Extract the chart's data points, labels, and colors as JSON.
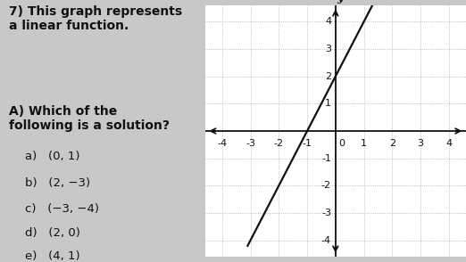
{
  "title_text": "7) This graph represents\na linear function.",
  "question_text": "A) Which of the\nfollowing is a solution?",
  "options": [
    "a)   (0, 1)",
    "b)   (2, −3)",
    "c)   (−3, −4)",
    "d)   (2, 0)",
    "e)   (4, 1)"
  ],
  "line_slope": 2,
  "line_intercept": 2,
  "x_line_start": -3.1,
  "x_line_end": 1.3,
  "xlim": [
    -4.6,
    4.6
  ],
  "ylim": [
    -4.6,
    4.6
  ],
  "xticks": [
    -4,
    -3,
    -2,
    -1,
    1,
    2,
    3,
    4
  ],
  "yticks": [
    -4,
    -3,
    -2,
    -1,
    1,
    2,
    3,
    4
  ],
  "graph_bg": "#ffffff",
  "overall_bg": "#c8c8c8",
  "grid_color": "#999999",
  "line_color": "#111111",
  "axis_color": "#111111",
  "text_color": "#111111",
  "font_size_title": 10,
  "font_size_question": 10,
  "font_size_options": 9.5,
  "font_size_tick": 8
}
